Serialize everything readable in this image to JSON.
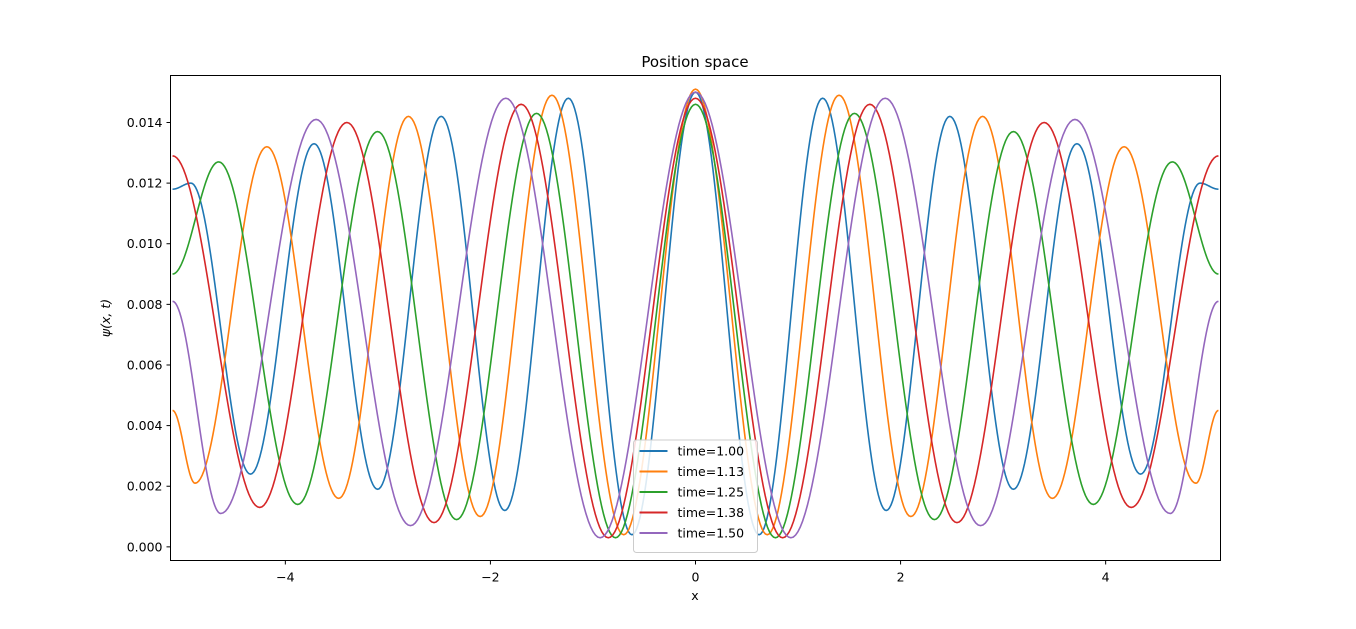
{
  "chart_data": {
    "type": "line",
    "title": "Position space",
    "xlabel": "x",
    "ylabel": "ψ(x, t)",
    "xlim": [
      -5.12,
      5.12
    ],
    "ylim": [
      -0.00045,
      0.01555
    ],
    "xticks": [
      {
        "value": -4,
        "label": "−4"
      },
      {
        "value": -2,
        "label": "−2"
      },
      {
        "value": 0,
        "label": "0"
      },
      {
        "value": 2,
        "label": "2"
      },
      {
        "value": 4,
        "label": "4"
      }
    ],
    "yticks": [
      {
        "value": 0.0,
        "label": "0.000"
      },
      {
        "value": 0.002,
        "label": "0.002"
      },
      {
        "value": 0.004,
        "label": "0.004"
      },
      {
        "value": 0.006,
        "label": "0.006"
      },
      {
        "value": 0.008,
        "label": "0.008"
      },
      {
        "value": 0.01,
        "label": "0.010"
      },
      {
        "value": 0.012,
        "label": "0.012"
      },
      {
        "value": 0.014,
        "label": "0.014"
      }
    ],
    "grid": false,
    "legend_position": "bottom-center",
    "series": [
      {
        "name": "time=1.00",
        "color": "#1f77b4",
        "x": [
          0,
          0.62,
          1.24,
          1.86,
          2.48,
          3.1,
          3.72,
          4.34,
          4.92,
          5.1
        ],
        "y": [
          0.015,
          0.0004,
          0.0148,
          0.0012,
          0.0142,
          0.0019,
          0.0133,
          0.0024,
          0.012,
          0.0118
        ]
      },
      {
        "name": "time=1.13",
        "color": "#ff7f0e",
        "x": [
          0,
          0.7,
          1.4,
          2.1,
          2.8,
          3.48,
          4.18,
          4.88,
          5.1
        ],
        "y": [
          0.0151,
          0.0004,
          0.0149,
          0.001,
          0.0142,
          0.0016,
          0.0132,
          0.0021,
          0.0045
        ]
      },
      {
        "name": "time=1.25",
        "color": "#2ca02c",
        "x": [
          0,
          0.78,
          1.55,
          2.33,
          3.1,
          3.88,
          4.65,
          5.1
        ],
        "y": [
          0.0146,
          0.0003,
          0.0143,
          0.0009,
          0.0137,
          0.0014,
          0.0127,
          0.009
        ]
      },
      {
        "name": "time=1.38",
        "color": "#d62728",
        "x": [
          0,
          0.85,
          1.7,
          2.55,
          3.4,
          4.25,
          5.1
        ],
        "y": [
          0.0148,
          0.0003,
          0.0146,
          0.0008,
          0.014,
          0.0013,
          0.0129
        ]
      },
      {
        "name": "time=1.50",
        "color": "#9467bd",
        "x": [
          0,
          0.93,
          1.85,
          2.78,
          3.7,
          4.63,
          5.1
        ],
        "y": [
          0.015,
          0.0003,
          0.0148,
          0.0007,
          0.0141,
          0.0011,
          0.0081
        ]
      }
    ]
  }
}
